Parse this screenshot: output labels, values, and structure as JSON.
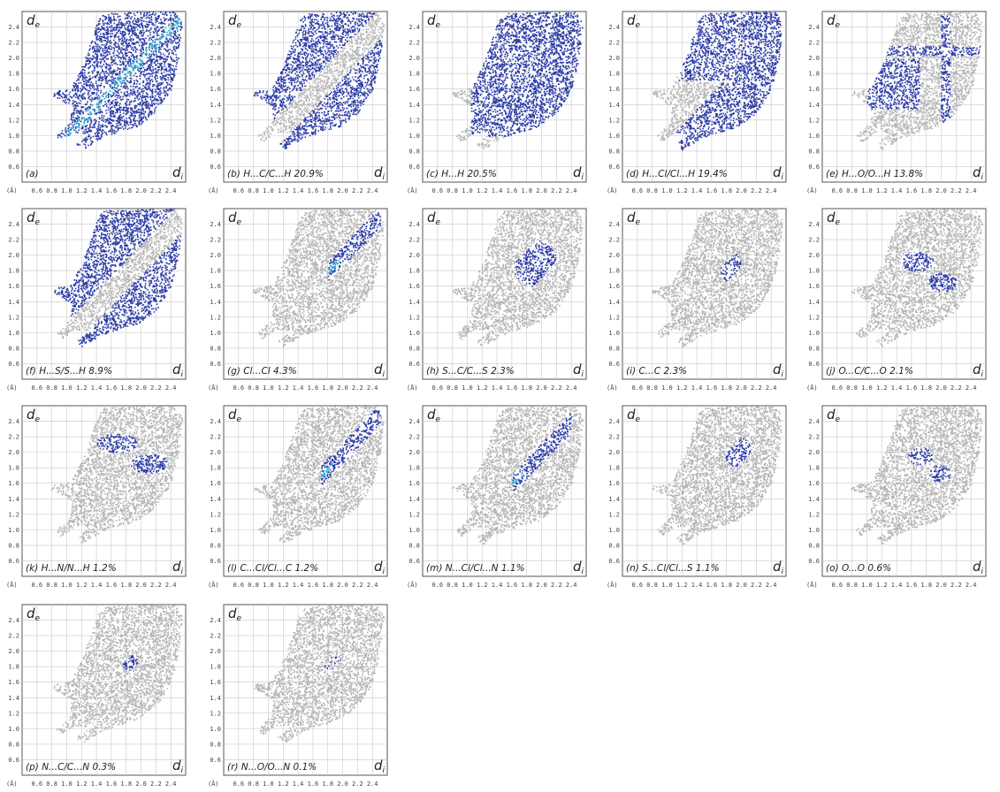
{
  "figure": {
    "x_axis_label": "di",
    "y_axis_label": "de",
    "x_unit": "(Å)"
  },
  "chart_data": [
    {
      "type": "scatter",
      "panel_label": "(a)",
      "contact": "",
      "percent": "",
      "xlabel": "di",
      "ylabel": "de",
      "xlim": [
        0.4,
        2.6
      ],
      "ylim": [
        0.4,
        2.6
      ],
      "x_ticks": [
        "0.6",
        "0.8",
        "1.0",
        "1.2",
        "1.4",
        "1.6",
        "1.8",
        "2.0",
        "2.2",
        "2.4"
      ],
      "y_ticks": [
        "0.6",
        "0.8",
        "1.0",
        "1.2",
        "1.4",
        "1.6",
        "1.8",
        "2.0",
        "2.2",
        "2.4"
      ],
      "highlight_color": "#2a3aa6",
      "grid": true,
      "fill": "full",
      "highlight_region": {
        "type": "full"
      }
    },
    {
      "type": "scatter",
      "panel_label": "(b)",
      "contact": "H...C/C...H",
      "percent": "20.9%",
      "xlabel": "di",
      "ylabel": "de",
      "xlim": [
        0.4,
        2.6
      ],
      "ylim": [
        0.4,
        2.6
      ],
      "x_ticks": [
        "0.6",
        "0.8",
        "1.0",
        "1.2",
        "1.4",
        "1.6",
        "1.8",
        "2.0",
        "2.2",
        "2.4"
      ],
      "y_ticks": [
        "0.6",
        "0.8",
        "1.0",
        "1.2",
        "1.4",
        "1.6",
        "1.8",
        "2.0",
        "2.2",
        "2.4"
      ],
      "highlight_color": "#2a3aa6",
      "grid": true,
      "highlight_region": {
        "type": "wings"
      }
    },
    {
      "type": "scatter",
      "panel_label": "(c)",
      "contact": "H...H",
      "percent": "20.5%",
      "xlabel": "di",
      "ylabel": "de",
      "xlim": [
        0.4,
        2.6
      ],
      "ylim": [
        0.4,
        2.6
      ],
      "x_ticks": [
        "0.6",
        "0.8",
        "1.0",
        "1.2",
        "1.4",
        "1.6",
        "1.8",
        "2.0",
        "2.2",
        "2.4"
      ],
      "y_ticks": [
        "0.6",
        "0.8",
        "1.0",
        "1.2",
        "1.4",
        "1.6",
        "1.8",
        "2.0",
        "2.2",
        "2.4"
      ],
      "highlight_color": "#2a3aa6",
      "grid": true,
      "highlight_region": {
        "type": "core"
      }
    },
    {
      "type": "scatter",
      "panel_label": "(d)",
      "contact": "H...Cl/Cl...H",
      "percent": "19.4%",
      "xlabel": "di",
      "ylabel": "de",
      "xlim": [
        0.4,
        2.6
      ],
      "ylim": [
        0.4,
        2.6
      ],
      "x_ticks": [
        "0.6",
        "0.8",
        "1.0",
        "1.2",
        "1.4",
        "1.6",
        "1.8",
        "2.0",
        "2.2",
        "2.4"
      ],
      "y_ticks": [
        "0.6",
        "0.8",
        "1.0",
        "1.2",
        "1.4",
        "1.6",
        "1.8",
        "2.0",
        "2.2",
        "2.4"
      ],
      "highlight_color": "#2a3aa6",
      "grid": true,
      "highlight_region": {
        "type": "wedge"
      }
    },
    {
      "type": "scatter",
      "panel_label": "(e)",
      "contact": "H...O/O...H",
      "percent": "13.8%",
      "xlabel": "di",
      "ylabel": "de",
      "xlim": [
        0.4,
        2.6
      ],
      "ylim": [
        0.4,
        2.6
      ],
      "x_ticks": [
        "0.6",
        "0.8",
        "1.0",
        "1.2",
        "1.4",
        "1.6",
        "1.8",
        "2.0",
        "2.2",
        "2.4"
      ],
      "y_ticks": [
        "0.6",
        "0.8",
        "1.0",
        "1.2",
        "1.4",
        "1.6",
        "1.8",
        "2.0",
        "2.2",
        "2.4"
      ],
      "highlight_color": "#2a3aa6",
      "grid": true,
      "highlight_region": {
        "type": "spikes"
      }
    },
    {
      "type": "scatter",
      "panel_label": "(f)",
      "contact": "H...S/S...H",
      "percent": "8.9%",
      "xlabel": "di",
      "ylabel": "de",
      "xlim": [
        0.4,
        2.6
      ],
      "ylim": [
        0.4,
        2.6
      ],
      "x_ticks": [
        "0.6",
        "0.8",
        "1.0",
        "1.2",
        "1.4",
        "1.6",
        "1.8",
        "2.0",
        "2.2",
        "2.4"
      ],
      "y_ticks": [
        "0.6",
        "0.8",
        "1.0",
        "1.2",
        "1.4",
        "1.6",
        "1.8",
        "2.0",
        "2.2",
        "2.4"
      ],
      "highlight_color": "#2a3aa6",
      "grid": true,
      "highlight_region": {
        "type": "wings"
      }
    },
    {
      "type": "scatter",
      "panel_label": "(g)",
      "contact": "Cl...Cl",
      "percent": "4.3%",
      "xlabel": "di",
      "ylabel": "de",
      "xlim": [
        0.4,
        2.6
      ],
      "ylim": [
        0.4,
        2.6
      ],
      "x_ticks": [
        "0.6",
        "0.8",
        "1.0",
        "1.2",
        "1.4",
        "1.6",
        "1.8",
        "2.0",
        "2.2",
        "2.4"
      ],
      "y_ticks": [
        "0.6",
        "0.8",
        "1.0",
        "1.2",
        "1.4",
        "1.6",
        "1.8",
        "2.0",
        "2.2",
        "2.4"
      ],
      "highlight_color": "#2a3aa6",
      "grid": true,
      "highlight_region": {
        "type": "diag",
        "x": [
          1.8,
          2.5
        ]
      }
    },
    {
      "type": "scatter",
      "panel_label": "(h)",
      "contact": "S...C/C...S",
      "percent": "2.3%",
      "xlabel": "di",
      "ylabel": "de",
      "xlim": [
        0.4,
        2.6
      ],
      "ylim": [
        0.4,
        2.6
      ],
      "x_ticks": [
        "0.6",
        "0.8",
        "1.0",
        "1.2",
        "1.4",
        "1.6",
        "1.8",
        "2.0",
        "2.2",
        "2.4"
      ],
      "y_ticks": [
        "0.6",
        "0.8",
        "1.0",
        "1.2",
        "1.4",
        "1.6",
        "1.8",
        "2.0",
        "2.2",
        "2.4"
      ],
      "highlight_color": "#2a3aa6",
      "grid": true,
      "highlight_region": {
        "type": "blob",
        "cx": 1.9,
        "cy": 1.9,
        "rx": 0.3,
        "ry": 0.3
      }
    },
    {
      "type": "scatter",
      "panel_label": "(i)",
      "contact": "C...C",
      "percent": "2.3%",
      "xlabel": "di",
      "ylabel": "de",
      "xlim": [
        0.4,
        2.6
      ],
      "ylim": [
        0.4,
        2.6
      ],
      "x_ticks": [
        "0.6",
        "0.8",
        "1.0",
        "1.2",
        "1.4",
        "1.6",
        "1.8",
        "2.0",
        "2.2",
        "2.4"
      ],
      "y_ticks": [
        "0.6",
        "0.8",
        "1.0",
        "1.2",
        "1.4",
        "1.6",
        "1.8",
        "2.0",
        "2.2",
        "2.4"
      ],
      "highlight_color": "#2a3aa6",
      "grid": true,
      "highlight_region": {
        "type": "blob",
        "cx": 1.85,
        "cy": 1.85,
        "rx": 0.14,
        "ry": 0.2
      }
    },
    {
      "type": "scatter",
      "panel_label": "(j)",
      "contact": "O...C/C...O",
      "percent": "2.1%",
      "xlabel": "di",
      "ylabel": "de",
      "xlim": [
        0.4,
        2.6
      ],
      "ylim": [
        0.4,
        2.6
      ],
      "x_ticks": [
        "0.6",
        "0.8",
        "1.0",
        "1.2",
        "1.4",
        "1.6",
        "1.8",
        "2.0",
        "2.2",
        "2.4"
      ],
      "y_ticks": [
        "0.6",
        "0.8",
        "1.0",
        "1.2",
        "1.4",
        "1.6",
        "1.8",
        "2.0",
        "2.2",
        "2.4"
      ],
      "highlight_color": "#2a3aa6",
      "grid": true,
      "highlight_region": {
        "type": "pair",
        "cx": 1.85,
        "cy": 1.8,
        "rx": 0.4,
        "ry": 0.35
      }
    },
    {
      "type": "scatter",
      "panel_label": "(k)",
      "contact": "H...N/N...H",
      "percent": "1.2%",
      "xlabel": "di",
      "ylabel": "de",
      "xlim": [
        0.4,
        2.6
      ],
      "ylim": [
        0.4,
        2.6
      ],
      "x_ticks": [
        "0.6",
        "0.8",
        "1.0",
        "1.2",
        "1.4",
        "1.6",
        "1.8",
        "2.0",
        "2.2",
        "2.4"
      ],
      "y_ticks": [
        "0.6",
        "0.8",
        "1.0",
        "1.2",
        "1.4",
        "1.6",
        "1.8",
        "2.0",
        "2.2",
        "2.4"
      ],
      "highlight_color": "#2a3aa6",
      "grid": true,
      "highlight_region": {
        "type": "pair",
        "cx": 1.9,
        "cy": 2.0,
        "rx": 0.5,
        "ry": 0.35
      }
    },
    {
      "type": "scatter",
      "panel_label": "(l)",
      "contact": "C...Cl/Cl...C",
      "percent": "1.2%",
      "xlabel": "di",
      "ylabel": "de",
      "xlim": [
        0.4,
        2.6
      ],
      "ylim": [
        0.4,
        2.6
      ],
      "x_ticks": [
        "0.6",
        "0.8",
        "1.0",
        "1.2",
        "1.4",
        "1.6",
        "1.8",
        "2.0",
        "2.2",
        "2.4"
      ],
      "y_ticks": [
        "0.6",
        "0.8",
        "1.0",
        "1.2",
        "1.4",
        "1.6",
        "1.8",
        "2.0",
        "2.2",
        "2.4"
      ],
      "highlight_color": "#2a3aa6",
      "grid": true,
      "highlight_region": {
        "type": "diag",
        "x": [
          1.7,
          2.5
        ]
      }
    },
    {
      "type": "scatter",
      "panel_label": "(m)",
      "contact": "N...Cl/Cl...N",
      "percent": "1.1%",
      "xlabel": "di",
      "ylabel": "de",
      "xlim": [
        0.4,
        2.6
      ],
      "ylim": [
        0.4,
        2.6
      ],
      "x_ticks": [
        "0.6",
        "0.8",
        "1.0",
        "1.2",
        "1.4",
        "1.6",
        "1.8",
        "2.0",
        "2.2",
        "2.4"
      ],
      "y_ticks": [
        "0.6",
        "0.8",
        "1.0",
        "1.2",
        "1.4",
        "1.6",
        "1.8",
        "2.0",
        "2.2",
        "2.4"
      ],
      "highlight_color": "#2a3aa6",
      "grid": true,
      "highlight_region": {
        "type": "diag",
        "x": [
          1.6,
          2.4
        ]
      }
    },
    {
      "type": "scatter",
      "panel_label": "(n)",
      "contact": "S...Cl/Cl...S",
      "percent": "1.1%",
      "xlabel": "di",
      "ylabel": "de",
      "xlim": [
        0.4,
        2.6
      ],
      "ylim": [
        0.4,
        2.6
      ],
      "x_ticks": [
        "0.6",
        "0.8",
        "1.0",
        "1.2",
        "1.4",
        "1.6",
        "1.8",
        "2.0",
        "2.2",
        "2.4"
      ],
      "y_ticks": [
        "0.6",
        "0.8",
        "1.0",
        "1.2",
        "1.4",
        "1.6",
        "1.8",
        "2.0",
        "2.2",
        "2.4"
      ],
      "highlight_color": "#2a3aa6",
      "grid": true,
      "highlight_region": {
        "type": "blob",
        "cx": 1.95,
        "cy": 2.0,
        "rx": 0.18,
        "ry": 0.2
      }
    },
    {
      "type": "scatter",
      "panel_label": "(o)",
      "contact": "O...O",
      "percent": "0.6%",
      "xlabel": "di",
      "ylabel": "de",
      "xlim": [
        0.4,
        2.6
      ],
      "ylim": [
        0.4,
        2.6
      ],
      "x_ticks": [
        "0.6",
        "0.8",
        "1.0",
        "1.2",
        "1.4",
        "1.6",
        "1.8",
        "2.0",
        "2.2",
        "2.4"
      ],
      "y_ticks": [
        "0.6",
        "0.8",
        "1.0",
        "1.2",
        "1.4",
        "1.6",
        "1.8",
        "2.0",
        "2.2",
        "2.4"
      ],
      "highlight_color": "#2a3aa6",
      "grid": true,
      "highlight_region": {
        "type": "pair",
        "cx": 1.85,
        "cy": 1.85,
        "rx": 0.3,
        "ry": 0.3
      }
    },
    {
      "type": "scatter",
      "panel_label": "(p)",
      "contact": "N...C/C...N",
      "percent": "0.3%",
      "xlabel": "di",
      "ylabel": "de",
      "xlim": [
        0.4,
        2.6
      ],
      "ylim": [
        0.4,
        2.6
      ],
      "x_ticks": [
        "0.6",
        "0.8",
        "1.0",
        "1.2",
        "1.4",
        "1.6",
        "1.8",
        "2.0",
        "2.2",
        "2.4"
      ],
      "y_ticks": [
        "0.6",
        "0.8",
        "1.0",
        "1.2",
        "1.4",
        "1.6",
        "1.8",
        "2.0",
        "2.2",
        "2.4"
      ],
      "highlight_color": "#2a3aa6",
      "grid": true,
      "highlight_region": {
        "type": "blob",
        "cx": 1.85,
        "cy": 1.85,
        "rx": 0.1,
        "ry": 0.1
      }
    },
    {
      "type": "scatter",
      "panel_label": "(r)",
      "contact": "N...O/O...N",
      "percent": "0.1%",
      "xlabel": "di",
      "ylabel": "de",
      "xlim": [
        0.4,
        2.6
      ],
      "ylim": [
        0.4,
        2.6
      ],
      "x_ticks": [
        "0.6",
        "0.8",
        "1.0",
        "1.2",
        "1.4",
        "1.6",
        "1.8",
        "2.0",
        "2.2",
        "2.4"
      ],
      "y_ticks": [
        "0.6",
        "0.8",
        "1.0",
        "1.2",
        "1.4",
        "1.6",
        "1.8",
        "2.0",
        "2.2",
        "2.4"
      ],
      "highlight_color": "#2a3aa6",
      "grid": true,
      "highlight_region": {
        "type": "blob",
        "cx": 1.85,
        "cy": 1.85,
        "rx": 0.12,
        "ry": 0.1,
        "sparse": true
      }
    }
  ]
}
